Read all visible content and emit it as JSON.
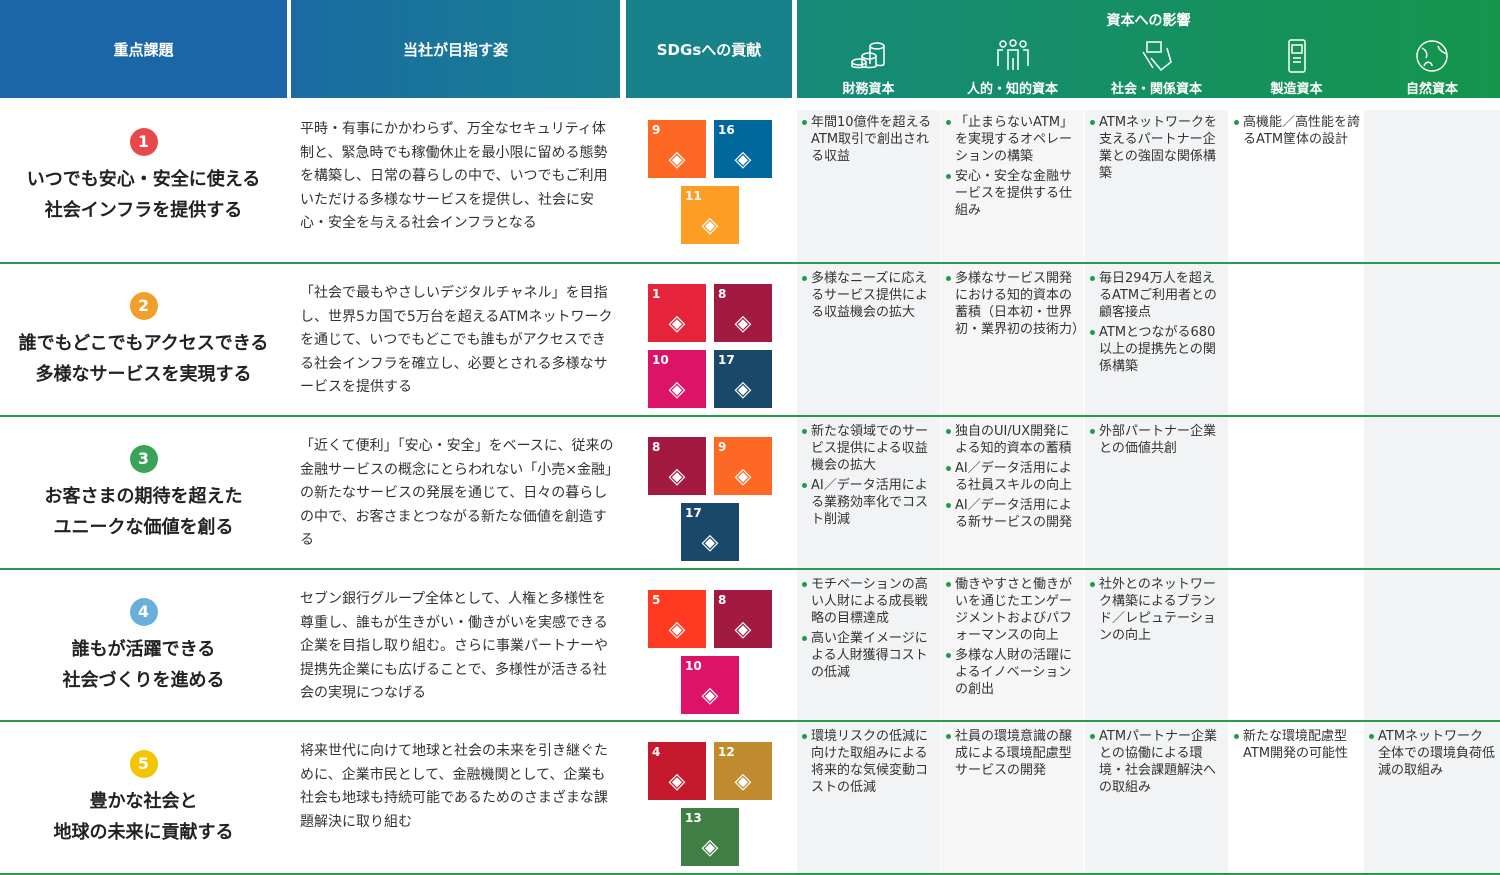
{
  "header": {
    "theme": "重点課題",
    "goal": "当社が目指す姿",
    "sdgs": "SDGsへの貢献",
    "impact": "資本への影響",
    "capitals": [
      {
        "label": "財務資本",
        "icon": "coins-icon"
      },
      {
        "label": "人的・知的資本",
        "icon": "people-icon"
      },
      {
        "label": "社会・関係資本",
        "icon": "handshake-icon"
      },
      {
        "label": "製造資本",
        "icon": "atm-icon"
      },
      {
        "label": "自然資本",
        "icon": "globe-leaf-icon"
      }
    ]
  },
  "rows": [
    {
      "num": "1",
      "color": "#e8484a",
      "theme": [
        "いつでも安心・安全に使える",
        "社会インフラを提供する"
      ],
      "goal": "平時・有事にかかわらず、万全なセキュリティ体制と、緊急時でも稼働休止を最小限に留める態勢を構築し、日常の暮らしの中で、いつでもご利用いただける多様なサービスを提供し、社会に安心・安全を与える社会インフラとなる",
      "sdgs": [
        {
          "n": "9",
          "c": "#FD6925"
        },
        {
          "n": "16",
          "c": "#00689D"
        },
        {
          "n": "11",
          "c": "#FD9D24"
        }
      ],
      "impacts": [
        [
          "年間10億件を超えるATM取引で創出される収益"
        ],
        [
          "「止まらないATM」を実現するオペレーションの構築",
          "安心・安全な金融サービスを提供する仕組み"
        ],
        [
          "ATMネットワークを支えるパートナー企業との強固な関係構築"
        ],
        [
          "高機能／高性能を誇るATM筐体の設計"
        ],
        []
      ]
    },
    {
      "num": "2",
      "color": "#f0a02a",
      "theme": [
        "誰でもどこでもアクセスできる",
        "多様なサービスを実現する"
      ],
      "goal": "「社会で最もやさしいデジタルチャネル」を目指し、世界5カ国で5万台を超えるATMネットワークを通じて、いつでもどこでも誰もがアクセスできる社会インフラを確立し、必要とされる多様なサービスを提供する",
      "sdgs": [
        {
          "n": "1",
          "c": "#E5243B"
        },
        {
          "n": "8",
          "c": "#A21942"
        },
        {
          "n": "10",
          "c": "#DD1367"
        },
        {
          "n": "17",
          "c": "#19486A"
        }
      ],
      "impacts": [
        [
          "多様なニーズに応えるサービス提供による収益機会の拡大"
        ],
        [
          "多様なサービス開発における知的資本の蓄積（日本初・世界初・業界初の技術力）"
        ],
        [
          "毎日294万人を超えるATMご利用者との顧客接点",
          "ATMとつながる680以上の提携先との関係構築"
        ],
        [],
        []
      ]
    },
    {
      "num": "3",
      "color": "#3aa357",
      "theme": [
        "お客さまの期待を超えた",
        "ユニークな価値を創る"
      ],
      "goal": "「近くて便利」「安心・安全」をベースに、従来の金融サービスの概念にとらわれない「小売×金融」の新たなサービスの発展を通じて、日々の暮らしの中で、お客さまとつながる新たな価値を創造する",
      "sdgs": [
        {
          "n": "8",
          "c": "#A21942"
        },
        {
          "n": "9",
          "c": "#FD6925"
        },
        {
          "n": "17",
          "c": "#19486A"
        }
      ],
      "impacts": [
        [
          "新たな領域でのサービス提供による収益機会の拡大",
          "AI／データ活用による業務効率化でコスト削減"
        ],
        [
          "独自のUI/UX開発による知的資本の蓄積",
          "AI／データ活用による社員スキルの向上",
          "AI／データ活用による新サービスの開発"
        ],
        [
          "外部パートナー企業との価値共創"
        ],
        [],
        []
      ]
    },
    {
      "num": "4",
      "color": "#6aafdc",
      "theme": [
        "誰もが活躍できる",
        "社会づくりを進める"
      ],
      "goal": "セブン銀行グループ全体として、人権と多様性を尊重し、誰もが生きがい・働きがいを実感できる企業を目指し取り組む。さらに事業パートナーや提携先企業にも広げることで、多様性が活きる社会の実現につなげる",
      "sdgs": [
        {
          "n": "5",
          "c": "#FF3A21"
        },
        {
          "n": "8",
          "c": "#A21942"
        },
        {
          "n": "10",
          "c": "#DD1367"
        }
      ],
      "impacts": [
        [
          "モチベーションの高い人財による成長戦略の目標達成",
          "高い企業イメージによる人財獲得コストの低減"
        ],
        [
          "働きやすさと働きがいを通じたエンゲージメントおよびパフォーマンスの向上",
          "多様な人財の活躍によるイノベーションの創出"
        ],
        [
          "社外とのネットワーク構築によるブランド／レピュテーションの向上"
        ],
        [],
        []
      ]
    },
    {
      "num": "5",
      "color": "#f5c400",
      "theme": [
        "豊かな社会と",
        "地球の未来に貢献する"
      ],
      "goal": "将来世代に向けて地球と社会の未来を引き継ぐために、企業市民として、金融機関として、企業も社会も地球も持続可能であるためのさまざまな課題解決に取り組む",
      "sdgs": [
        {
          "n": "4",
          "c": "#C5192D"
        },
        {
          "n": "12",
          "c": "#BF8B2E"
        },
        {
          "n": "13",
          "c": "#3F7E44"
        }
      ],
      "impacts": [
        [
          "環境リスクの低減に向けた取組みによる将来的な気候変動コストの低減"
        ],
        [
          "社員の環境意識の醸成による環境配慮型サービスの開発"
        ],
        [
          "ATMパートナー企業との協働による環境・社会課題解決への取組み"
        ],
        [
          "新たな環境配慮型ATM開発の可能性"
        ],
        [
          "ATMネットワーク全体での環境負荷低減の取組み"
        ]
      ]
    }
  ]
}
